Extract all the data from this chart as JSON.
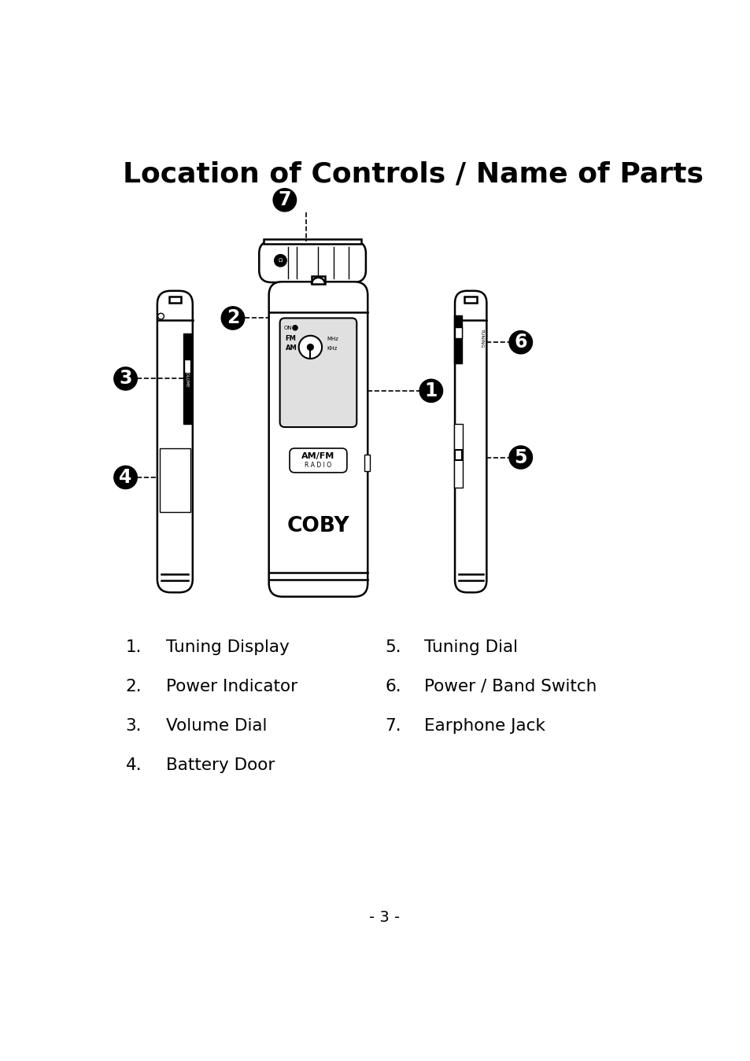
{
  "title": "Location of Controls / Name of Parts",
  "page_number": "- 3 -",
  "background_color": "#ffffff",
  "text_color": "#000000",
  "labels_left": [
    {
      "num": "1.",
      "text": "Tuning Display"
    },
    {
      "num": "2.",
      "text": "Power Indicator"
    },
    {
      "num": "3.",
      "text": "Volume Dial"
    },
    {
      "num": "4.",
      "text": "Battery Door"
    }
  ],
  "labels_right": [
    {
      "num": "5.",
      "text": "Tuning Dial"
    },
    {
      "num": "6.",
      "text": "Power / Band Switch"
    },
    {
      "num": "7.",
      "text": "Earphone Jack"
    }
  ]
}
